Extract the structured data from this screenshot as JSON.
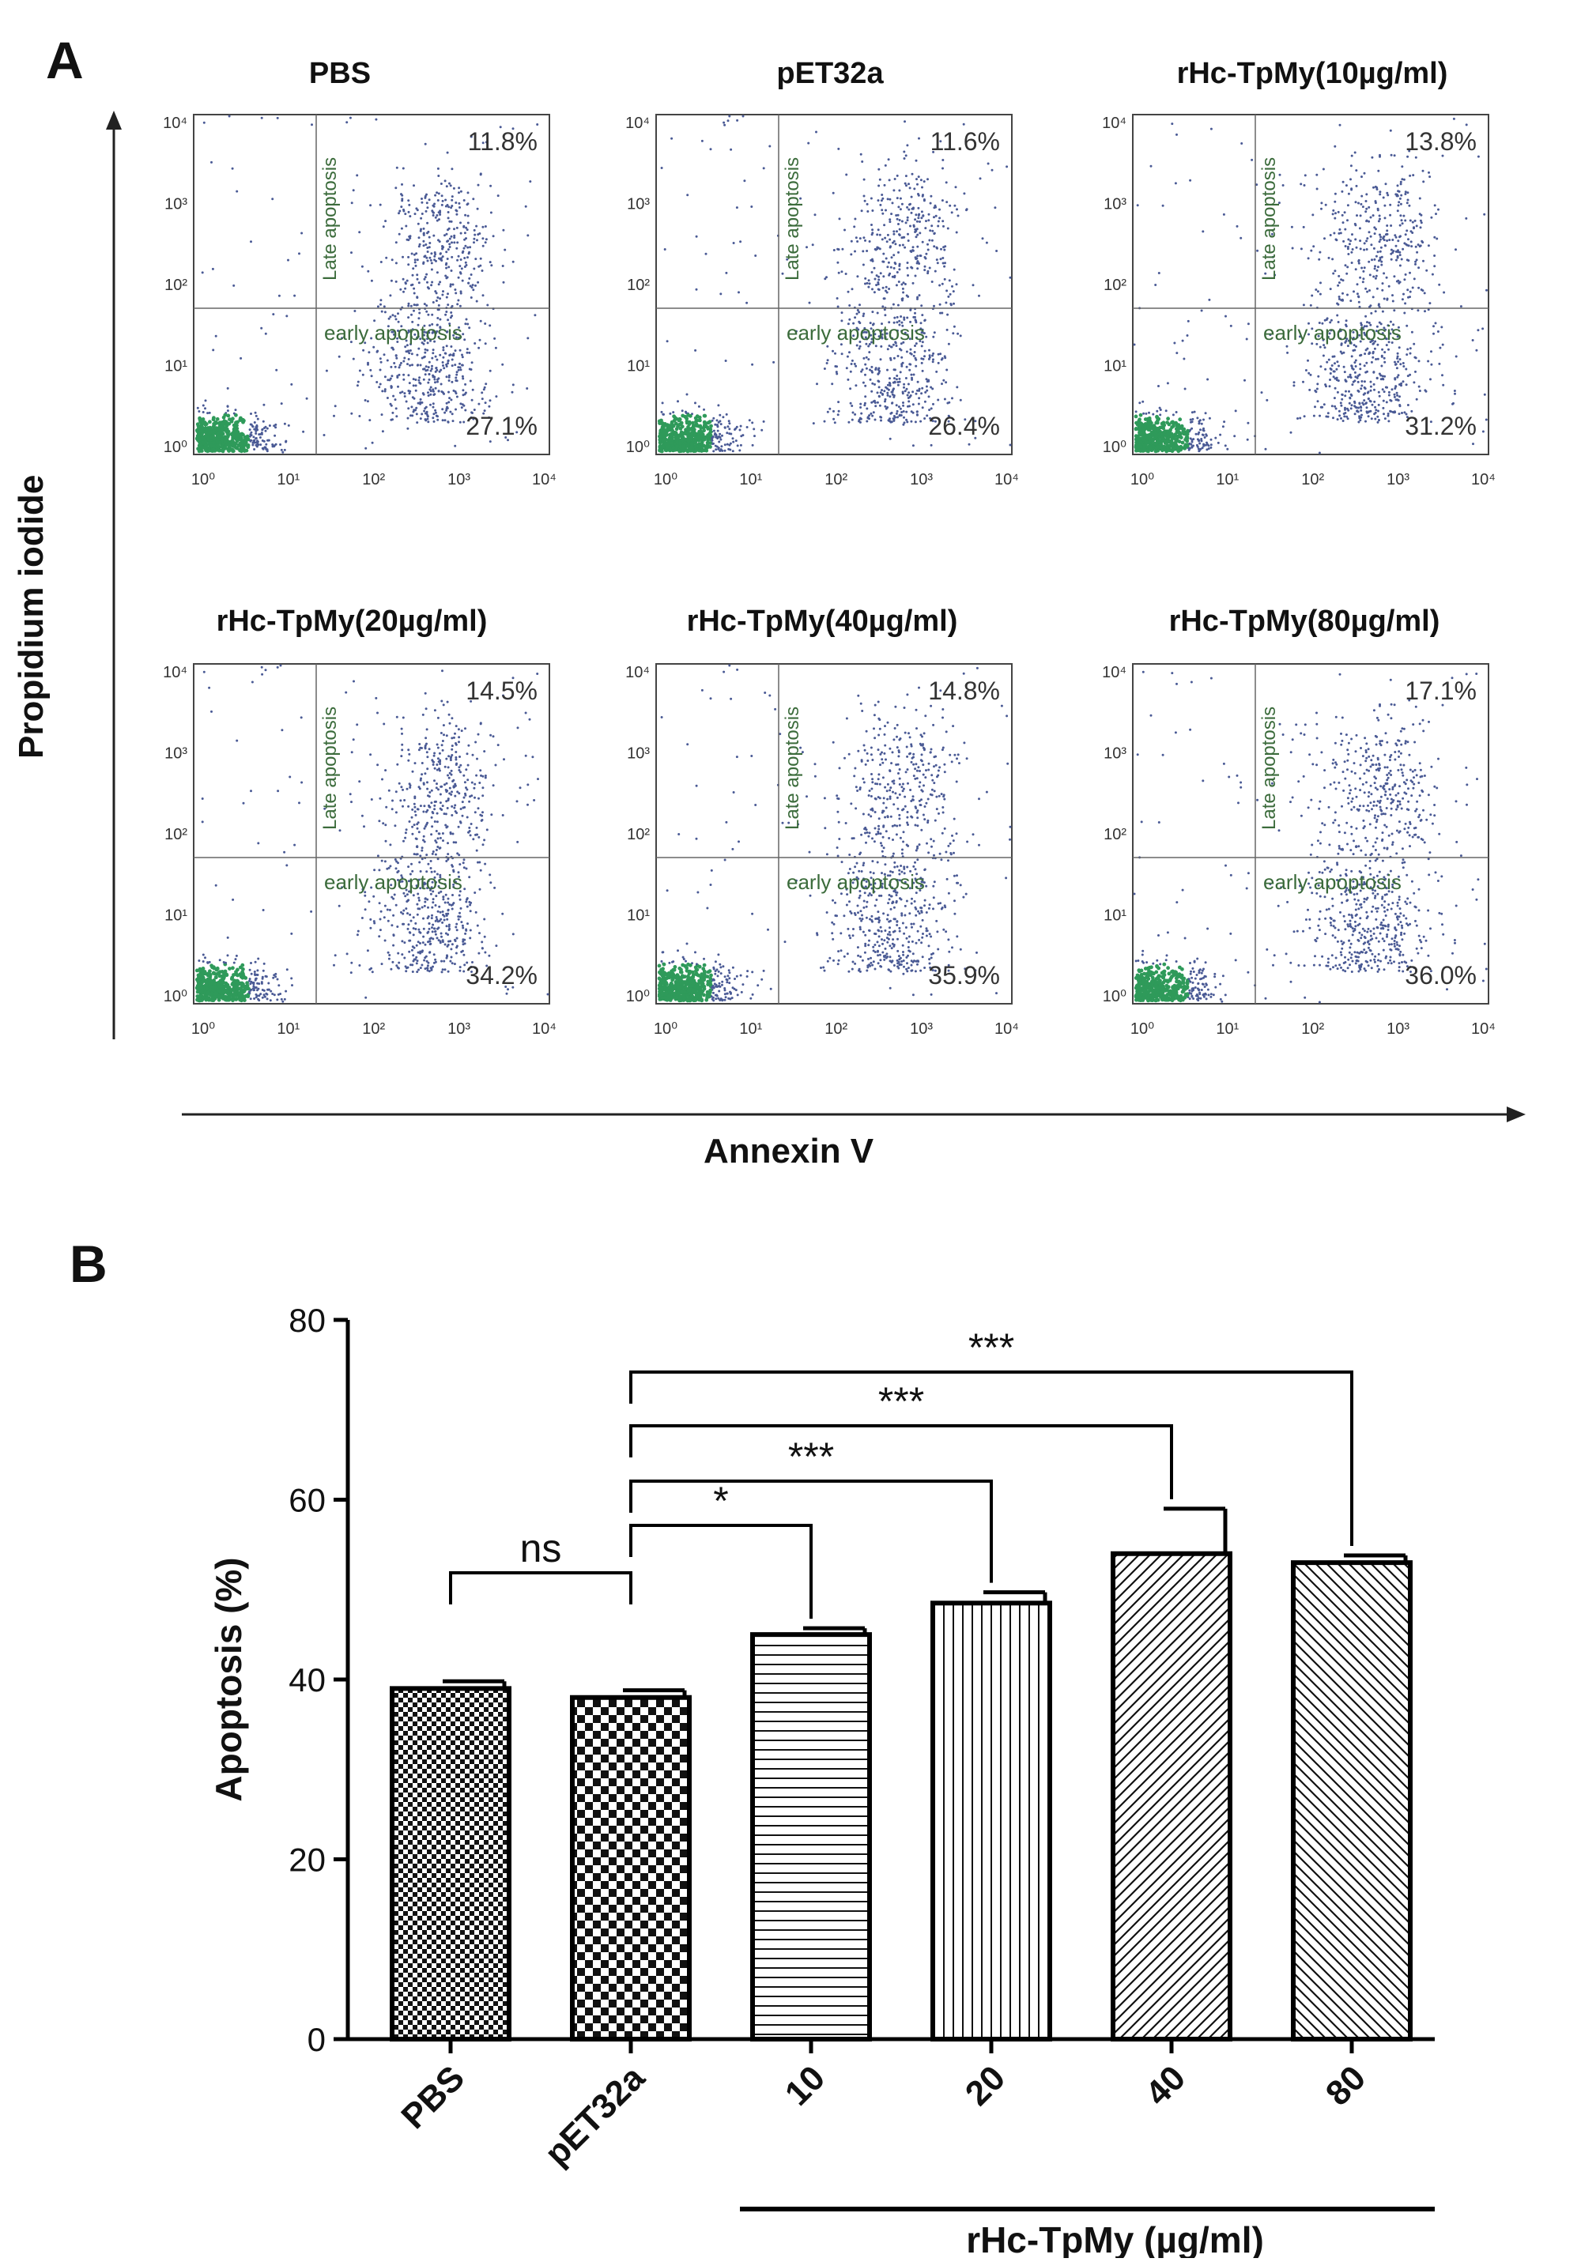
{
  "panel_a": {
    "letter": "A",
    "y_axis_label": "Propidium iodide",
    "x_axis_label": "Annexin V",
    "quadrant_labels": {
      "upper": "Late apoptosis",
      "lower": "early apoptosis"
    },
    "tick_labels": [
      "10⁰",
      "10¹",
      "10²",
      "10³",
      "10⁴"
    ],
    "plots": [
      {
        "title": "PBS",
        "late": "11.8%",
        "early": "27.1%"
      },
      {
        "title": "pET32a",
        "late": "11.6%",
        "early": "26.4%"
      },
      {
        "title": "rHc-TpMy(10µg/ml)",
        "late": "13.8%",
        "early": "31.2%"
      },
      {
        "title": "rHc-TpMy(20µg/ml)",
        "late": "14.5%",
        "early": "34.2%"
      },
      {
        "title": "rHc-TpMy(40µg/ml)",
        "late": "14.8%",
        "early": "35.9%"
      },
      {
        "title": "rHc-TpMy(80µg/ml)",
        "late": "17.1%",
        "early": "36.0%"
      }
    ]
  },
  "chart_data": {
    "type": "bar",
    "panel_letter": "B",
    "ylabel": "Apoptosis (%)",
    "ylim": [
      0,
      80
    ],
    "yticks": [
      0,
      20,
      40,
      60,
      80
    ],
    "categories": [
      "PBS",
      "pET32a",
      "10",
      "20",
      "40",
      "80"
    ],
    "values": [
      39,
      38,
      45,
      48.5,
      54,
      53
    ],
    "errors": [
      0.8,
      0.8,
      0.7,
      1.2,
      5,
      0.8
    ],
    "patterns": [
      "checker-fine",
      "checker-coarse",
      "horizontal",
      "vertical",
      "diag-right",
      "diag-left"
    ],
    "group_label": "rHc-TpMy (µg/ml)",
    "significance": [
      {
        "from": 0,
        "to": 1,
        "label": "ns"
      },
      {
        "from": 1,
        "to": 2,
        "label": "*"
      },
      {
        "from": 1,
        "to": 3,
        "label": "***"
      },
      {
        "from": 1,
        "to": 4,
        "label": "***"
      },
      {
        "from": 1,
        "to": 5,
        "label": "***"
      }
    ]
  }
}
